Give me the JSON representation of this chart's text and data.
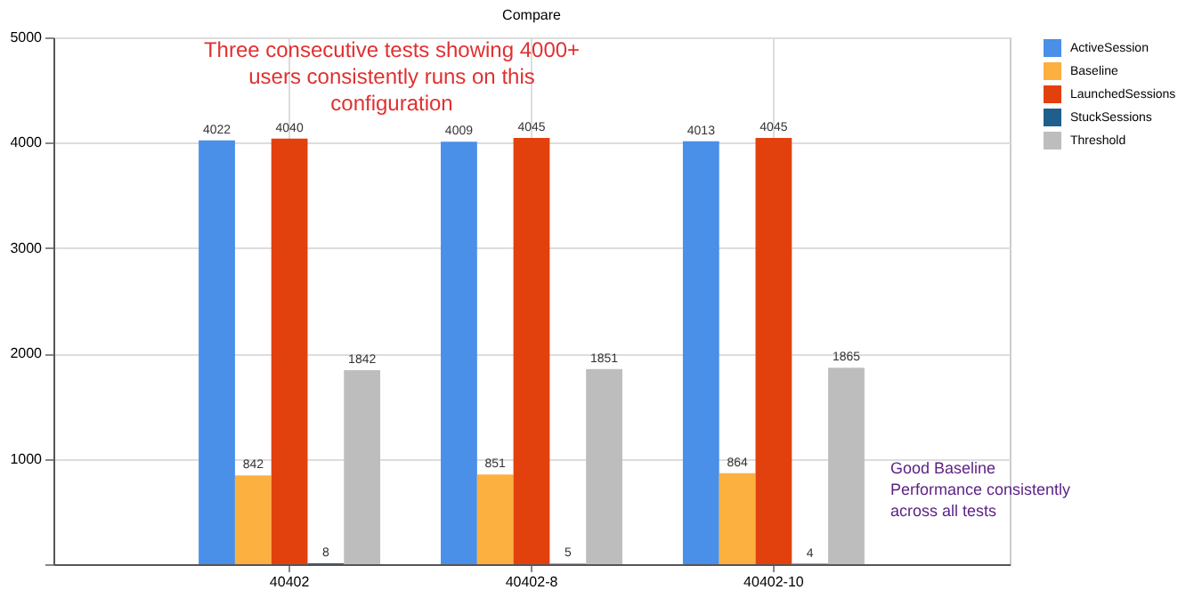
{
  "chart_data": {
    "type": "bar",
    "title": "Compare",
    "categories": [
      "40402",
      "40402-8",
      "40402-10"
    ],
    "series": [
      {
        "name": "ActiveSession",
        "color": "#4a8fe8",
        "values": [
          4022,
          4009,
          4013
        ]
      },
      {
        "name": "Baseline",
        "color": "#fbb040",
        "values": [
          842,
          851,
          864
        ]
      },
      {
        "name": "LaunchedSessions",
        "color": "#e2410e",
        "values": [
          4040,
          4045,
          4045
        ]
      },
      {
        "name": "StuckSessions",
        "color": "#1f5f8b",
        "values": [
          8,
          5,
          4
        ]
      },
      {
        "name": "Threshold",
        "color": "#bdbdbd",
        "values": [
          1842,
          1851,
          1865
        ]
      }
    ],
    "ylim": [
      0,
      5000
    ],
    "yticks": [
      {
        "value": 0,
        "label": null
      },
      1000,
      2000,
      3000,
      4000,
      5000
    ],
    "grid": true,
    "legend": "top right",
    "data_labels": true,
    "annotations": [
      "Three consecutive tests showing 4000+ users consistently runs on this configuration",
      "Good Baseline Performance consistently across all tests"
    ]
  }
}
